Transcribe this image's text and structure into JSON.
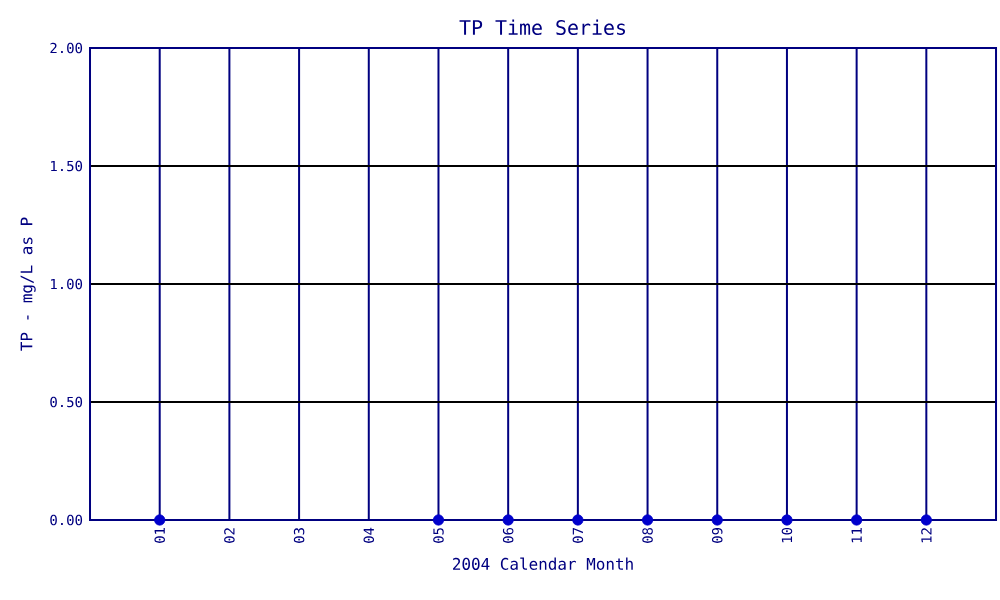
{
  "chart_data": {
    "type": "scatter",
    "title": "TP Time Series",
    "xlabel": "2004 Calendar Month",
    "ylabel": "TP - mg/L as P",
    "categories": [
      "01",
      "02",
      "03",
      "04",
      "05",
      "06",
      "07",
      "08",
      "09",
      "10",
      "11",
      "12"
    ],
    "series": [
      {
        "color": "#0000cc",
        "values": [
          0,
          null,
          null,
          null,
          0,
          0,
          0,
          0,
          0,
          0,
          0,
          0
        ]
      }
    ],
    "ylim": [
      0,
      2
    ],
    "yticks": [
      {
        "value": 0,
        "label": "0.00"
      },
      {
        "value": 0.5,
        "label": "0.50"
      },
      {
        "value": 1,
        "label": "1.00"
      },
      {
        "value": 1.5,
        "label": "1.50"
      },
      {
        "value": 2,
        "label": "2.00"
      }
    ],
    "grid": true
  }
}
